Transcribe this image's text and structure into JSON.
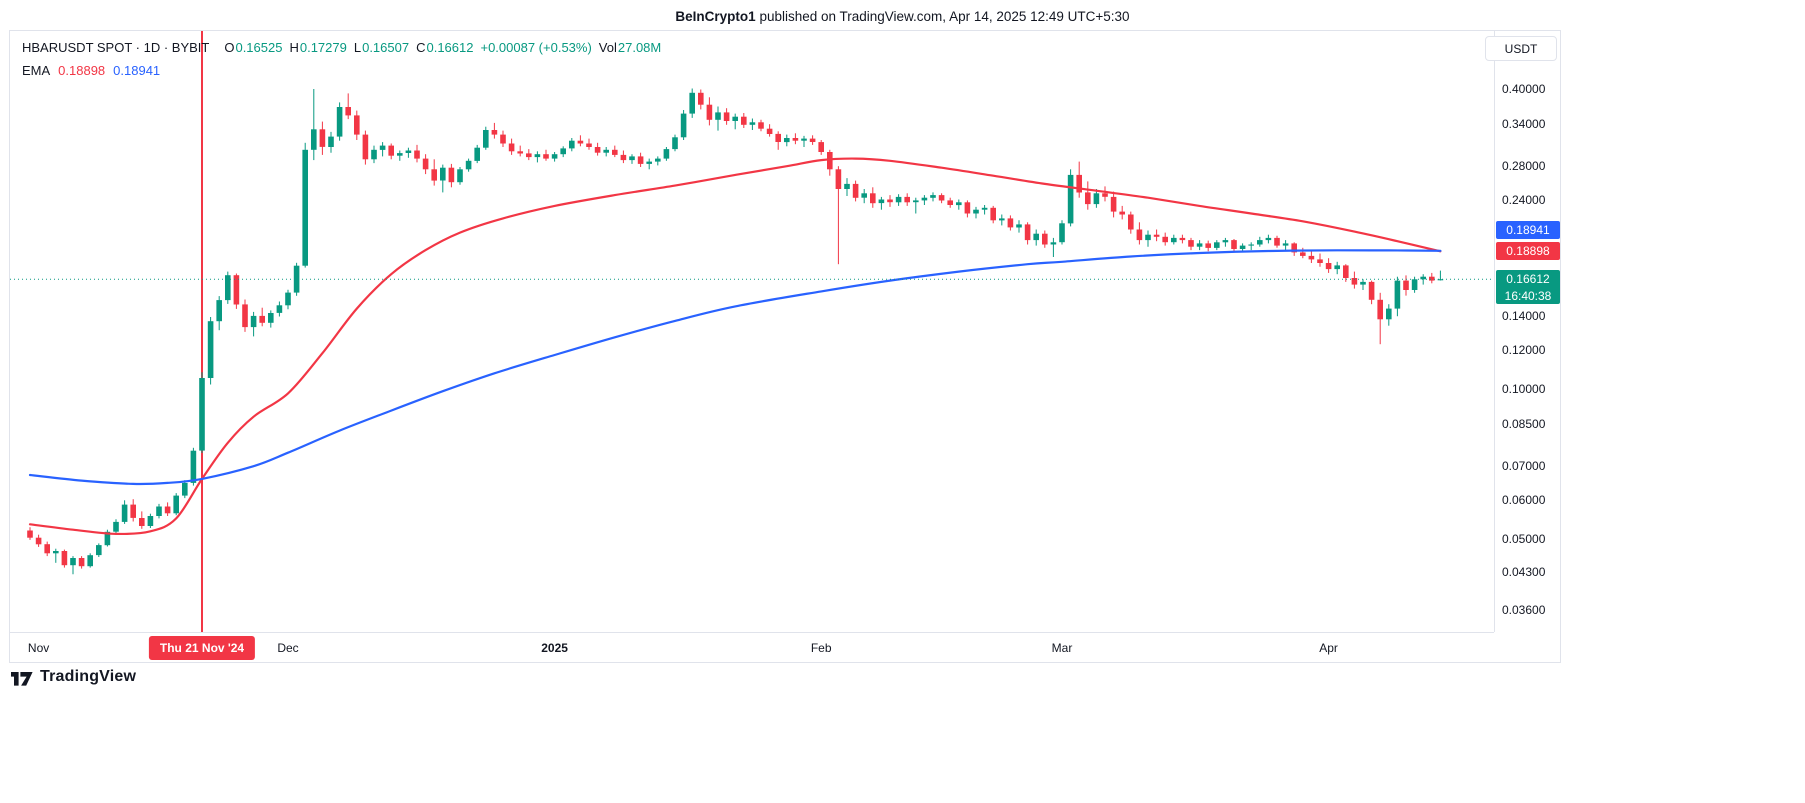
{
  "attribution": {
    "author": "BeInCrypto1",
    "text": " published on TradingView.com, Apr 14, 2025 12:49 UTC+5:30"
  },
  "header": {
    "symbol": "HBARUSDT SPOT · 1D · BYBIT",
    "ohlc": {
      "o_label": "O",
      "o_value": "0.16525",
      "h_label": "H",
      "h_value": "0.17279",
      "l_label": "L",
      "l_value": "0.16507",
      "c_label": "C",
      "c_value": "0.16612",
      "change": "+0.00087 (+0.53%)",
      "vol_label": "Vol",
      "vol_value": "27.08M"
    },
    "ema": {
      "label": "EMA",
      "red_value": "0.18898",
      "blue_value": "0.18941"
    }
  },
  "currency_button": "USDT",
  "price_axis": {
    "labels": [
      "0.40000",
      "0.34000",
      "0.28000",
      "0.24000",
      "0.14000",
      "0.12000",
      "0.10000",
      "0.08500",
      "0.07000",
      "0.06000",
      "0.05000",
      "0.04300",
      "0.03600"
    ],
    "badges": {
      "blue": "0.18941",
      "red": "0.18898",
      "green": "0.16612",
      "countdown": "16:40:38"
    }
  },
  "time_axis": {
    "months": [
      {
        "label": "Nov",
        "i": 1
      },
      {
        "label": "Dec",
        "i": 30
      },
      {
        "label": "2025",
        "i": 61,
        "year": true
      },
      {
        "label": "Feb",
        "i": 92
      },
      {
        "label": "Mar",
        "i": 120
      },
      {
        "label": "Apr",
        "i": 151
      }
    ],
    "event_badge": {
      "label": "Thu 21 Nov '24",
      "i": 20
    }
  },
  "footer": {
    "brand": "TradingView"
  },
  "colors": {
    "up": "#089981",
    "down": "#F23645",
    "ema_fast": "#F23645",
    "ema_slow": "#2962FF",
    "badge_green": "#089981",
    "text": "#131722",
    "muted": "#787B86",
    "border": "#E0E3EB"
  },
  "chart_data": {
    "type": "candlestick",
    "symbol": "HBARUSDT",
    "timeframe": "1D",
    "exchange": "BYBIT",
    "yscale": "log",
    "ylim": [
      0.0335,
      0.42
    ],
    "x_start": "2024-11-01",
    "x_end": "2025-04-14",
    "marked_date": "2024-11-21",
    "current_price": 0.16612,
    "countdown": "16:40:38",
    "candles": [
      [
        0.052,
        0.0528,
        0.0498,
        0.0503
      ],
      [
        0.0503,
        0.051,
        0.0482,
        0.0488
      ],
      [
        0.0488,
        0.0494,
        0.0462,
        0.0468
      ],
      [
        0.0468,
        0.0478,
        0.0448,
        0.0473
      ],
      [
        0.0473,
        0.0476,
        0.0438,
        0.0443
      ],
      [
        0.0443,
        0.0462,
        0.0425,
        0.0458
      ],
      [
        0.0458,
        0.0462,
        0.0436,
        0.0441
      ],
      [
        0.0441,
        0.0468,
        0.0438,
        0.0464
      ],
      [
        0.0464,
        0.049,
        0.046,
        0.0486
      ],
      [
        0.0486,
        0.0522,
        0.0483,
        0.0517
      ],
      [
        0.0517,
        0.0548,
        0.051,
        0.0541
      ],
      [
        0.0541,
        0.0598,
        0.0536,
        0.0586
      ],
      [
        0.0586,
        0.0601,
        0.0542,
        0.0551
      ],
      [
        0.0551,
        0.0568,
        0.0524,
        0.0531
      ],
      [
        0.0531,
        0.0562,
        0.0526,
        0.0556
      ],
      [
        0.0556,
        0.0588,
        0.055,
        0.0581
      ],
      [
        0.0581,
        0.0592,
        0.0556,
        0.0563
      ],
      [
        0.0563,
        0.0618,
        0.0558,
        0.0611
      ],
      [
        0.0611,
        0.0656,
        0.0604,
        0.0648
      ],
      [
        0.0648,
        0.0762,
        0.064,
        0.0752
      ],
      [
        0.0752,
        0.108,
        0.0744,
        0.1052
      ],
      [
        0.1052,
        0.1395,
        0.1021,
        0.1368
      ],
      [
        0.1368,
        0.1536,
        0.1312,
        0.1508
      ],
      [
        0.1508,
        0.172,
        0.1482,
        0.1692
      ],
      [
        0.1692,
        0.1705,
        0.1448,
        0.1478
      ],
      [
        0.1478,
        0.1512,
        0.1302,
        0.1331
      ],
      [
        0.1331,
        0.1428,
        0.1275,
        0.1402
      ],
      [
        0.1402,
        0.1456,
        0.1336,
        0.1358
      ],
      [
        0.1358,
        0.1438,
        0.1328,
        0.1421
      ],
      [
        0.1421,
        0.1498,
        0.1398,
        0.1472
      ],
      [
        0.1472,
        0.1582,
        0.1446,
        0.1561
      ],
      [
        0.1561,
        0.1792,
        0.1538,
        0.1768
      ],
      [
        0.1768,
        0.312,
        0.1752,
        0.302
      ],
      [
        0.302,
        0.4,
        0.288,
        0.332
      ],
      [
        0.332,
        0.344,
        0.295,
        0.306
      ],
      [
        0.306,
        0.328,
        0.298,
        0.321
      ],
      [
        0.321,
        0.376,
        0.315,
        0.368
      ],
      [
        0.368,
        0.392,
        0.348,
        0.354
      ],
      [
        0.354,
        0.362,
        0.316,
        0.324
      ],
      [
        0.324,
        0.33,
        0.282,
        0.289
      ],
      [
        0.289,
        0.308,
        0.284,
        0.302
      ],
      [
        0.302,
        0.313,
        0.293,
        0.308
      ],
      [
        0.308,
        0.311,
        0.289,
        0.294
      ],
      [
        0.294,
        0.301,
        0.287,
        0.2975
      ],
      [
        0.2975,
        0.305,
        0.291,
        0.301
      ],
      [
        0.301,
        0.309,
        0.285,
        0.29
      ],
      [
        0.29,
        0.296,
        0.27,
        0.276
      ],
      [
        0.276,
        0.289,
        0.256,
        0.262
      ],
      [
        0.262,
        0.282,
        0.248,
        0.278
      ],
      [
        0.278,
        0.283,
        0.254,
        0.26
      ],
      [
        0.26,
        0.279,
        0.257,
        0.276
      ],
      [
        0.276,
        0.29,
        0.273,
        0.287
      ],
      [
        0.287,
        0.309,
        0.284,
        0.305
      ],
      [
        0.305,
        0.336,
        0.302,
        0.331
      ],
      [
        0.331,
        0.342,
        0.318,
        0.324
      ],
      [
        0.324,
        0.33,
        0.306,
        0.311
      ],
      [
        0.311,
        0.318,
        0.295,
        0.3
      ],
      [
        0.3,
        0.308,
        0.293,
        0.297
      ],
      [
        0.297,
        0.303,
        0.288,
        0.292
      ],
      [
        0.292,
        0.3,
        0.285,
        0.296
      ],
      [
        0.296,
        0.302,
        0.287,
        0.29
      ],
      [
        0.29,
        0.299,
        0.286,
        0.296
      ],
      [
        0.296,
        0.307,
        0.292,
        0.304
      ],
      [
        0.304,
        0.319,
        0.3,
        0.315
      ],
      [
        0.315,
        0.323,
        0.307,
        0.311
      ],
      [
        0.311,
        0.318,
        0.302,
        0.306
      ],
      [
        0.306,
        0.312,
        0.294,
        0.298
      ],
      [
        0.298,
        0.306,
        0.293,
        0.302
      ],
      [
        0.302,
        0.308,
        0.292,
        0.295
      ],
      [
        0.295,
        0.301,
        0.284,
        0.288
      ],
      [
        0.288,
        0.296,
        0.283,
        0.293
      ],
      [
        0.293,
        0.298,
        0.279,
        0.283
      ],
      [
        0.283,
        0.29,
        0.276,
        0.286
      ],
      [
        0.286,
        0.293,
        0.281,
        0.29
      ],
      [
        0.29,
        0.306,
        0.287,
        0.303
      ],
      [
        0.303,
        0.324,
        0.3,
        0.32
      ],
      [
        0.32,
        0.363,
        0.316,
        0.357
      ],
      [
        0.357,
        0.401,
        0.35,
        0.393
      ],
      [
        0.393,
        0.399,
        0.364,
        0.372
      ],
      [
        0.372,
        0.385,
        0.338,
        0.347
      ],
      [
        0.347,
        0.369,
        0.33,
        0.359
      ],
      [
        0.359,
        0.366,
        0.339,
        0.345
      ],
      [
        0.345,
        0.357,
        0.332,
        0.352
      ],
      [
        0.352,
        0.358,
        0.334,
        0.339
      ],
      [
        0.339,
        0.349,
        0.331,
        0.343
      ],
      [
        0.343,
        0.347,
        0.329,
        0.333
      ],
      [
        0.333,
        0.34,
        0.321,
        0.325
      ],
      [
        0.325,
        0.329,
        0.302,
        0.313
      ],
      [
        0.313,
        0.324,
        0.307,
        0.319
      ],
      [
        0.319,
        0.326,
        0.31,
        0.315
      ],
      [
        0.315,
        0.322,
        0.306,
        0.318
      ],
      [
        0.318,
        0.323,
        0.309,
        0.313
      ],
      [
        0.313,
        0.316,
        0.295,
        0.299
      ],
      [
        0.299,
        0.302,
        0.268,
        0.276
      ],
      [
        0.276,
        0.28,
        0.178,
        0.252
      ],
      [
        0.252,
        0.265,
        0.244,
        0.258
      ],
      [
        0.258,
        0.262,
        0.238,
        0.242
      ],
      [
        0.242,
        0.252,
        0.236,
        0.247
      ],
      [
        0.247,
        0.254,
        0.231,
        0.236
      ],
      [
        0.236,
        0.243,
        0.229,
        0.24
      ],
      [
        0.24,
        0.245,
        0.232,
        0.237
      ],
      [
        0.237,
        0.246,
        0.233,
        0.243
      ],
      [
        0.243,
        0.247,
        0.233,
        0.237
      ],
      [
        0.237,
        0.242,
        0.225,
        0.239
      ],
      [
        0.239,
        0.245,
        0.234,
        0.242
      ],
      [
        0.242,
        0.248,
        0.238,
        0.245
      ],
      [
        0.245,
        0.247,
        0.236,
        0.239
      ],
      [
        0.239,
        0.242,
        0.231,
        0.234
      ],
      [
        0.234,
        0.24,
        0.229,
        0.237
      ],
      [
        0.237,
        0.239,
        0.221,
        0.225
      ],
      [
        0.225,
        0.232,
        0.22,
        0.229
      ],
      [
        0.229,
        0.234,
        0.224,
        0.231
      ],
      [
        0.231,
        0.233,
        0.215,
        0.218
      ],
      [
        0.218,
        0.224,
        0.213,
        0.22
      ],
      [
        0.22,
        0.223,
        0.208,
        0.211
      ],
      [
        0.211,
        0.218,
        0.206,
        0.214
      ],
      [
        0.214,
        0.216,
        0.195,
        0.199
      ],
      [
        0.199,
        0.209,
        0.194,
        0.205
      ],
      [
        0.205,
        0.208,
        0.192,
        0.195
      ],
      [
        0.195,
        0.201,
        0.184,
        0.197
      ],
      [
        0.197,
        0.218,
        0.195,
        0.215
      ],
      [
        0.215,
        0.276,
        0.212,
        0.269
      ],
      [
        0.269,
        0.286,
        0.242,
        0.248
      ],
      [
        0.248,
        0.261,
        0.229,
        0.235
      ],
      [
        0.235,
        0.252,
        0.231,
        0.247
      ],
      [
        0.247,
        0.255,
        0.238,
        0.243
      ],
      [
        0.243,
        0.249,
        0.221,
        0.227
      ],
      [
        0.227,
        0.233,
        0.219,
        0.224
      ],
      [
        0.224,
        0.227,
        0.205,
        0.209
      ],
      [
        0.209,
        0.216,
        0.195,
        0.199
      ],
      [
        0.199,
        0.208,
        0.193,
        0.204
      ],
      [
        0.204,
        0.209,
        0.198,
        0.202
      ],
      [
        0.202,
        0.206,
        0.194,
        0.197
      ],
      [
        0.197,
        0.204,
        0.195,
        0.201
      ],
      [
        0.201,
        0.204,
        0.196,
        0.199
      ],
      [
        0.199,
        0.201,
        0.19,
        0.193
      ],
      [
        0.193,
        0.199,
        0.19,
        0.196
      ],
      [
        0.196,
        0.1985,
        0.189,
        0.192
      ],
      [
        0.192,
        0.199,
        0.19,
        0.197
      ],
      [
        0.197,
        0.201,
        0.193,
        0.199
      ],
      [
        0.199,
        0.2,
        0.189,
        0.191
      ],
      [
        0.191,
        0.196,
        0.188,
        0.194
      ],
      [
        0.194,
        0.197,
        0.19,
        0.195
      ],
      [
        0.195,
        0.202,
        0.193,
        0.199
      ],
      [
        0.199,
        0.204,
        0.196,
        0.201
      ],
      [
        0.201,
        0.203,
        0.192,
        0.194
      ],
      [
        0.194,
        0.199,
        0.19,
        0.196
      ],
      [
        0.196,
        0.197,
        0.185,
        0.188
      ],
      [
        0.188,
        0.192,
        0.183,
        0.185
      ],
      [
        0.185,
        0.19,
        0.179,
        0.182
      ],
      [
        0.182,
        0.187,
        0.176,
        0.179
      ],
      [
        0.179,
        0.183,
        0.171,
        0.174
      ],
      [
        0.174,
        0.18,
        0.17,
        0.177
      ],
      [
        0.177,
        0.178,
        0.164,
        0.167
      ],
      [
        0.167,
        0.172,
        0.159,
        0.162
      ],
      [
        0.162,
        0.166,
        0.158,
        0.164
      ],
      [
        0.164,
        0.165,
        0.148,
        0.151
      ],
      [
        0.151,
        0.156,
        0.123,
        0.138
      ],
      [
        0.138,
        0.148,
        0.134,
        0.145
      ],
      [
        0.145,
        0.168,
        0.14,
        0.165
      ],
      [
        0.165,
        0.169,
        0.154,
        0.158
      ],
      [
        0.158,
        0.168,
        0.156,
        0.166
      ],
      [
        0.166,
        0.17,
        0.162,
        0.168
      ],
      [
        0.168,
        0.171,
        0.163,
        0.165
      ],
      [
        0.16525,
        0.17279,
        0.16507,
        0.16612
      ]
    ],
    "ema_red_points": [
      [
        0,
        0.0535
      ],
      [
        5,
        0.0522
      ],
      [
        10,
        0.0512
      ],
      [
        14,
        0.0518
      ],
      [
        17,
        0.055
      ],
      [
        20,
        0.066
      ],
      [
        23,
        0.078
      ],
      [
        26,
        0.088
      ],
      [
        30,
        0.098
      ],
      [
        34,
        0.118
      ],
      [
        38,
        0.145
      ],
      [
        42,
        0.17
      ],
      [
        46,
        0.19
      ],
      [
        50,
        0.206
      ],
      [
        55,
        0.22
      ],
      [
        61,
        0.233
      ],
      [
        68,
        0.245
      ],
      [
        75,
        0.256
      ],
      [
        82,
        0.269
      ],
      [
        88,
        0.28
      ],
      [
        92,
        0.288
      ],
      [
        96,
        0.29
      ],
      [
        100,
        0.287
      ],
      [
        106,
        0.278
      ],
      [
        112,
        0.268
      ],
      [
        118,
        0.258
      ],
      [
        124,
        0.25
      ],
      [
        130,
        0.242
      ],
      [
        136,
        0.233
      ],
      [
        142,
        0.225
      ],
      [
        148,
        0.217
      ],
      [
        154,
        0.207
      ],
      [
        159,
        0.198
      ],
      [
        164,
        0.18898
      ]
    ],
    "ema_blue_points": [
      [
        0,
        0.0672
      ],
      [
        6,
        0.0655
      ],
      [
        12,
        0.0645
      ],
      [
        16,
        0.0648
      ],
      [
        20,
        0.066
      ],
      [
        26,
        0.07
      ],
      [
        30,
        0.0745
      ],
      [
        36,
        0.0825
      ],
      [
        42,
        0.0905
      ],
      [
        48,
        0.099
      ],
      [
        54,
        0.1075
      ],
      [
        61,
        0.117
      ],
      [
        68,
        0.127
      ],
      [
        75,
        0.137
      ],
      [
        82,
        0.1465
      ],
      [
        92,
        0.157
      ],
      [
        100,
        0.165
      ],
      [
        108,
        0.172
      ],
      [
        116,
        0.178
      ],
      [
        120,
        0.18
      ],
      [
        128,
        0.1845
      ],
      [
        136,
        0.1875
      ],
      [
        144,
        0.1892
      ],
      [
        152,
        0.1898
      ],
      [
        158,
        0.1897
      ],
      [
        164,
        0.18941
      ]
    ],
    "ema_values": {
      "red": 0.18898,
      "blue": 0.18941
    }
  }
}
